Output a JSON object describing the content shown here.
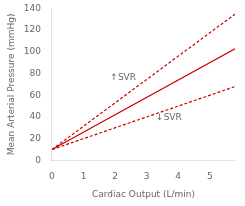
{
  "chart_data": {
    "type": "line",
    "xlabel": "Cardiac Output (L/min)",
    "ylabel": "Mean Arterial Pressure (mmHg)",
    "x": [
      0,
      5.8
    ],
    "series": [
      {
        "color": "#cc0000",
        "line_style": "solid",
        "values": [
          10,
          102.8
        ]
      },
      {
        "color": "#cc0000",
        "line_style": "dashed",
        "values": [
          10,
          134.7
        ]
      },
      {
        "color": "#cc0000",
        "line_style": "dashed",
        "values": [
          10,
          68
        ]
      }
    ],
    "xlim": [
      0,
      5.8
    ],
    "xticks": [
      0,
      1,
      2,
      3,
      4,
      5
    ],
    "ylim": [
      0,
      140
    ],
    "yticks": [
      0,
      20,
      40,
      60,
      80,
      100,
      120,
      140
    ],
    "grid": false,
    "annotations": [
      {
        "text": "↑SVR",
        "x": 1.85,
        "y": 76
      },
      {
        "text": "↓SVR",
        "x": 3.3,
        "y": 39
      }
    ]
  }
}
